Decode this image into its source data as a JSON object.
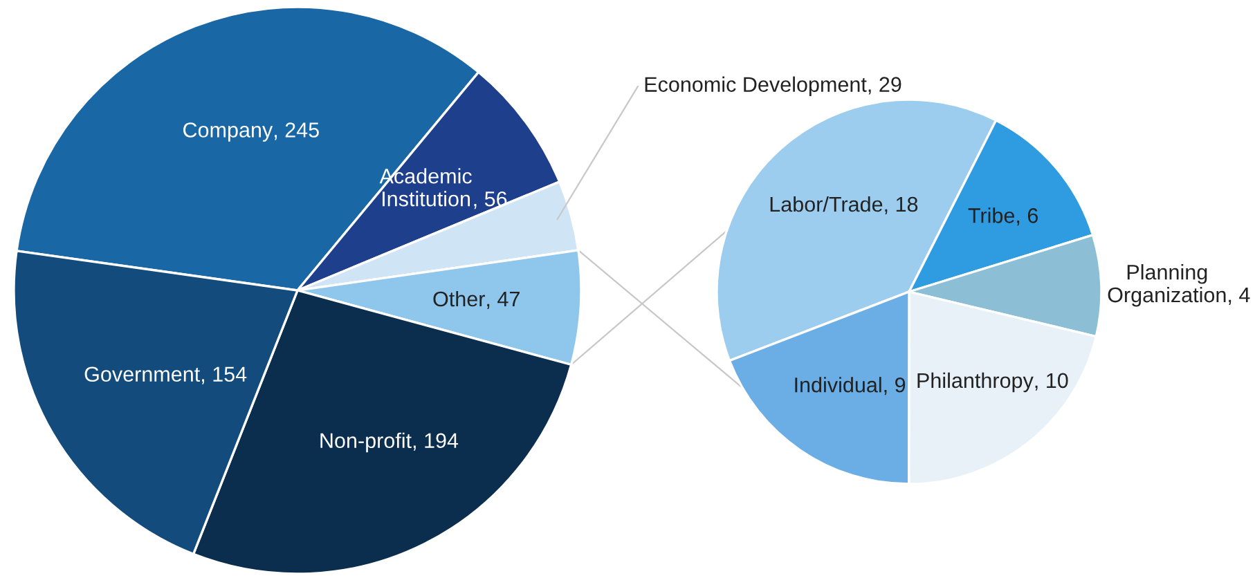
{
  "chart_data": [
    {
      "type": "pie",
      "categories": [
        "Company",
        "Academic Institution",
        "Economic Development",
        "Other",
        "Non-profit",
        "Government"
      ],
      "values": [
        245,
        56,
        29,
        47,
        194,
        154
      ],
      "colors": [
        "#1a67a6",
        "#1e3f8c",
        "#cfe4f4",
        "#8fc6eb",
        "#0c2e4e",
        "#124b7c"
      ],
      "value_labels": [
        ", 245",
        ", 56",
        ", 29",
        ", 47",
        ", 194",
        ", 154"
      ]
    },
    {
      "type": "pie",
      "categories": [
        "Labor/Trade",
        "Tribe",
        "Planning Organization",
        "Philanthropy",
        "Individual"
      ],
      "values": [
        18,
        6,
        4,
        10,
        9
      ],
      "colors": [
        "#9ccdef",
        "#2f9be0",
        "#8cbfd6",
        "#e8f0f8",
        "#6aaee5"
      ],
      "value_labels": [
        ", 18",
        ", 6",
        ", 4",
        ", 10",
        ", 9"
      ]
    }
  ]
}
